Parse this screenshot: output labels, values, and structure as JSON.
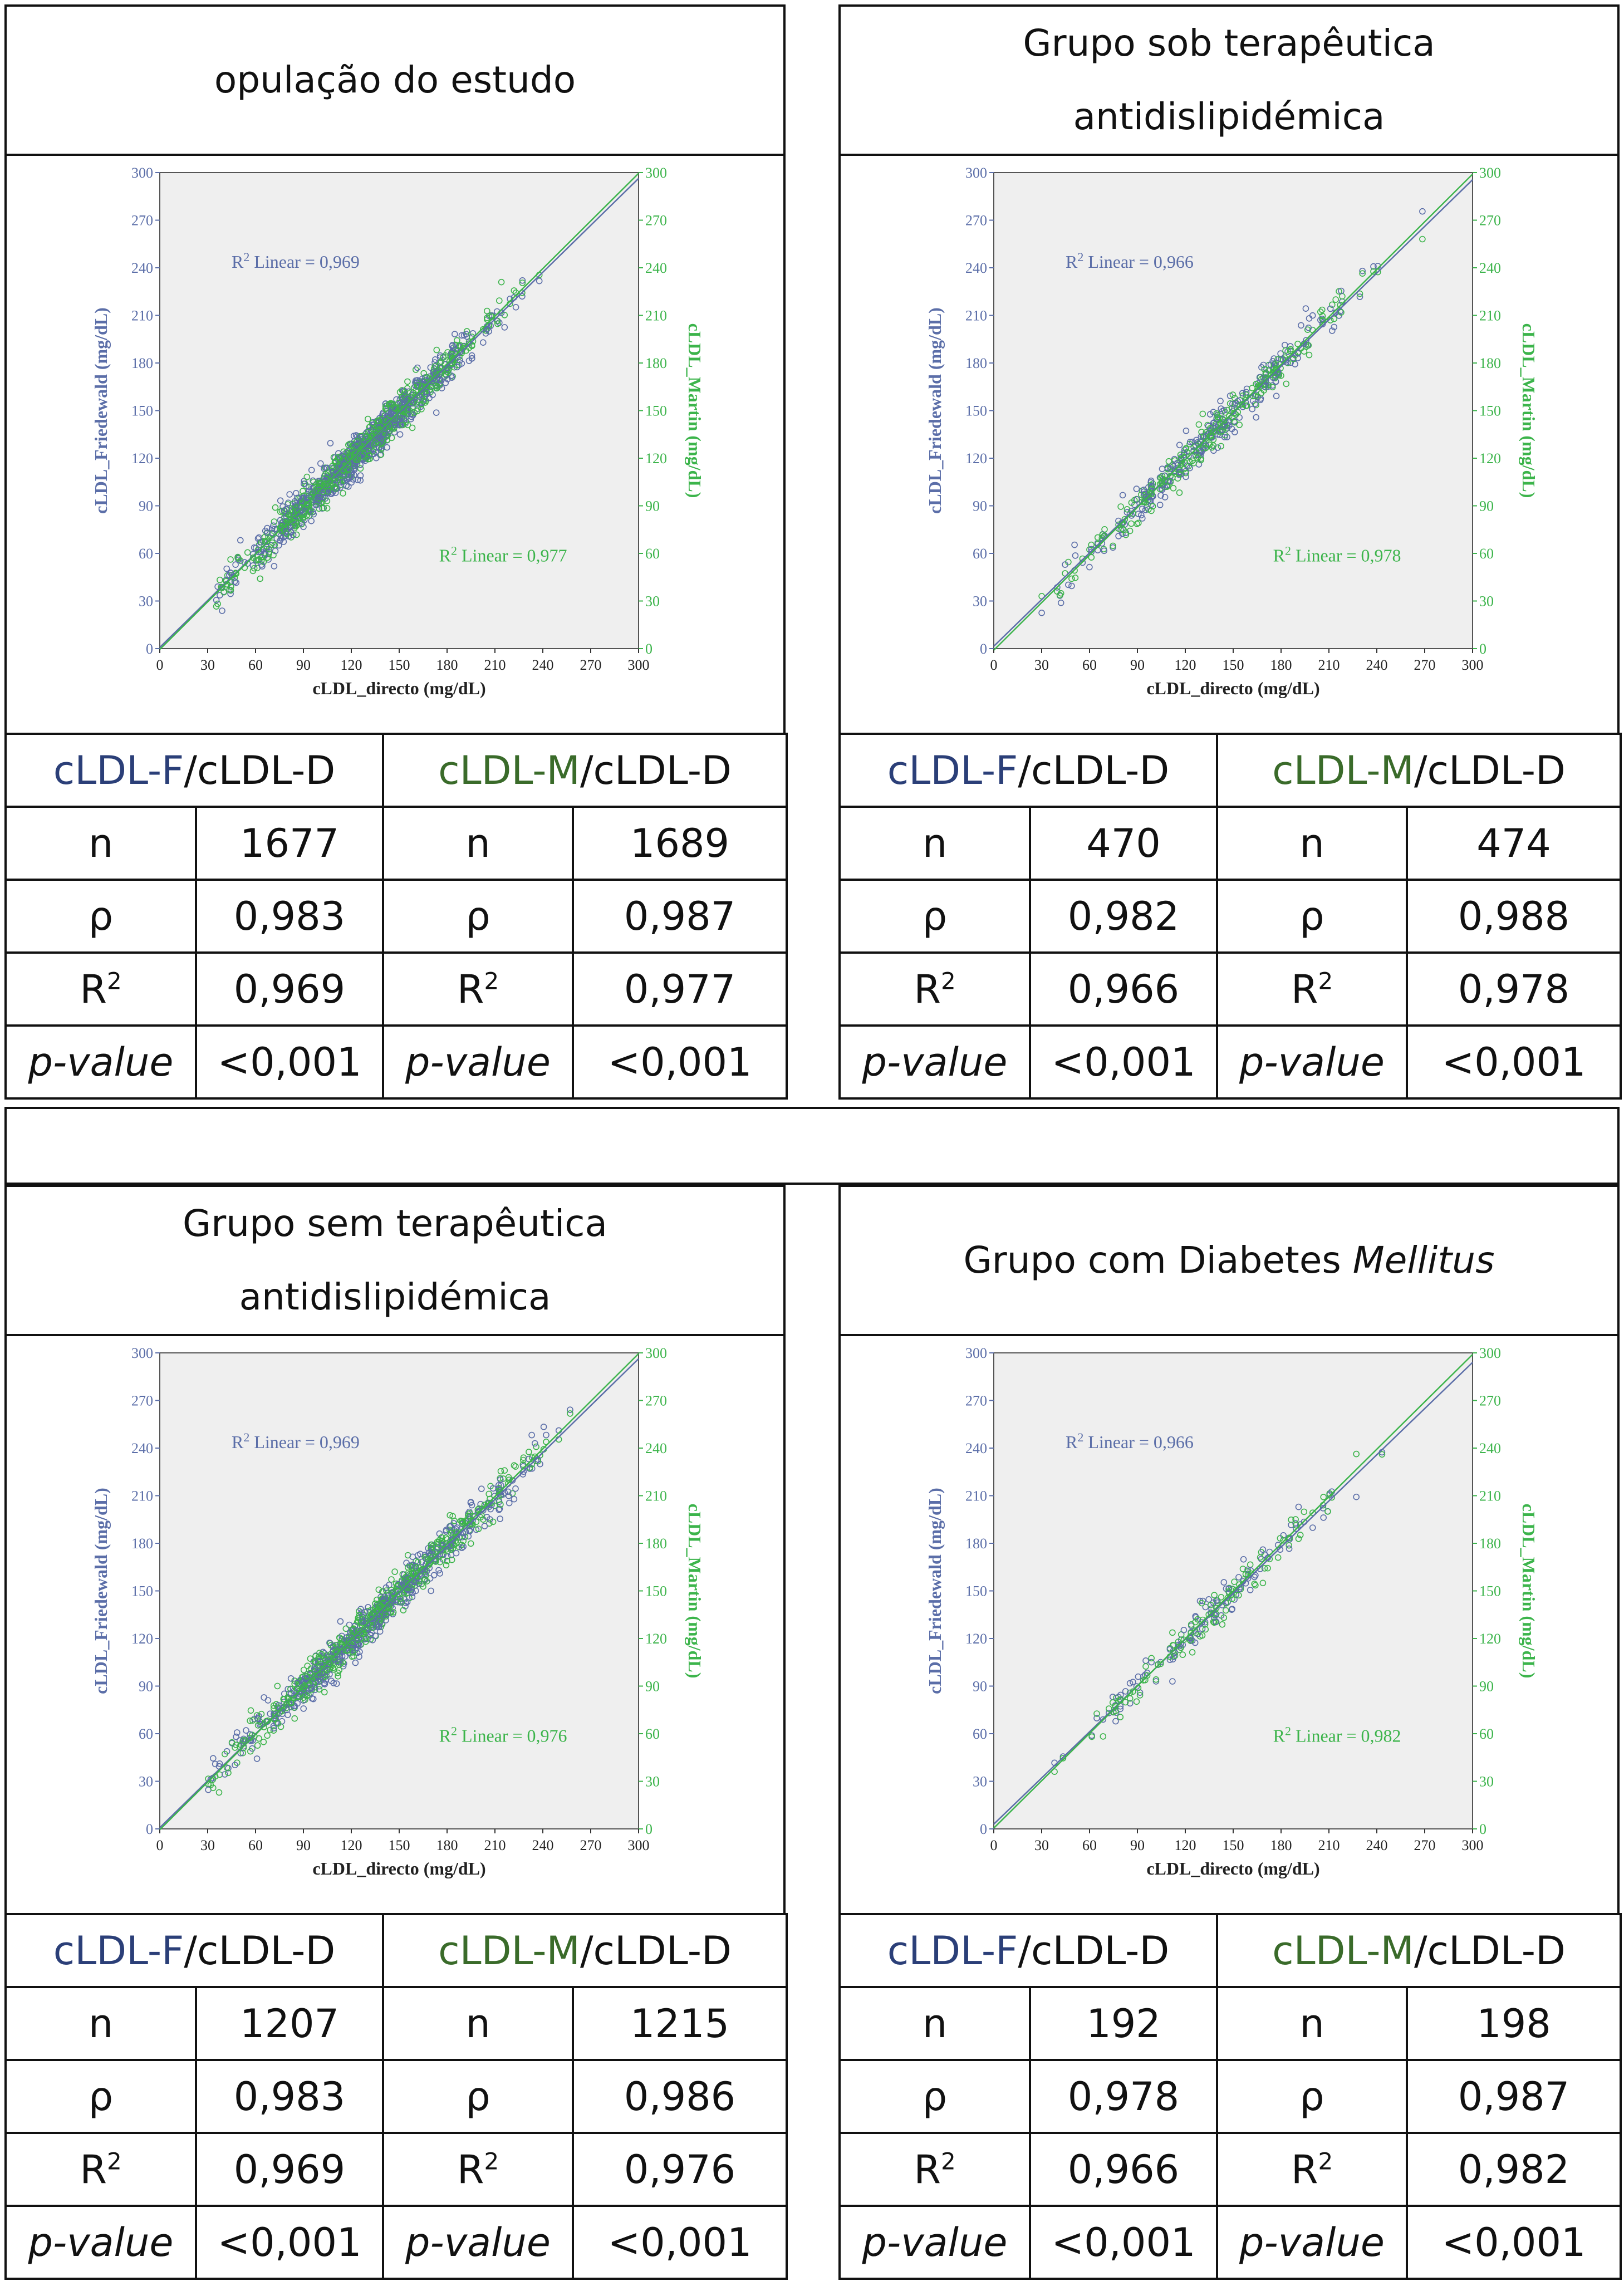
{
  "labels": {
    "f_prefix": "cLDL-F",
    "m_prefix": "cLDL-M",
    "d_suffix": "/cLDL-D",
    "n": "n",
    "rho": "ρ",
    "r2_base": "R",
    "r2_sup": "2",
    "pvalue": "p-value",
    "xlabel": "cLDL_directo (mg/dL)",
    "ylabel_left": "cLDL_Friedewald (mg/dL)",
    "ylabel_right": "cLDL_Martin (mg/dL)",
    "r2_linear": "R",
    "r2_linear_sup": "2",
    "r2_linear_suffix": " Linear = "
  },
  "colors": {
    "friedewald": "#5b6ea8",
    "martin": "#3cb44b",
    "plot_bg": "#efefef",
    "header_f": "#2b3f78",
    "header_m": "#3a6b2a"
  },
  "panels": [
    {
      "title_line1": "opulação do estudo",
      "title_line2": "",
      "title_italic": "",
      "stats": {
        "f": {
          "n": "1677",
          "rho": "0,983",
          "r2": "0,969",
          "p": "<0,001"
        },
        "m": {
          "n": "1689",
          "rho": "0,987",
          "r2": "0,977",
          "p": "<0,001"
        }
      },
      "chart_data": {
        "type": "scatter",
        "xlabel": "cLDL_directo (mg/dL)",
        "ylabel_left": "cLDL_Friedewald (mg/dL)",
        "ylabel_right": "cLDL_Martin (mg/dL)",
        "xlim": [
          0,
          300
        ],
        "ylim": [
          0,
          300
        ],
        "ticks": [
          0,
          30,
          60,
          90,
          120,
          150,
          180,
          210,
          240,
          270,
          300
        ],
        "range": [
          35,
          260
        ],
        "series": [
          {
            "name": "cLDL_Friedewald",
            "r2_label": "0,969",
            "fit": {
              "slope": 0.985,
              "intercept": 0.8
            }
          },
          {
            "name": "cLDL_Martin",
            "r2_label": "0,977",
            "fit": {
              "slope": 1.0,
              "intercept": -0.5
            }
          }
        ]
      }
    },
    {
      "title_line1": "Grupo sob terapêutica",
      "title_line2": "antidislipidémica",
      "title_italic": "",
      "stats": {
        "f": {
          "n": "470",
          "rho": "0,982",
          "r2": "0,966",
          "p": "<0,001"
        },
        "m": {
          "n": "474",
          "rho": "0,988",
          "r2": "0,978",
          "p": "<0,001"
        }
      },
      "chart_data": {
        "type": "scatter",
        "xlabel": "cLDL_directo (mg/dL)",
        "ylabel_left": "cLDL_Friedewald (mg/dL)",
        "ylabel_right": "cLDL_Martin (mg/dL)",
        "xlim": [
          0,
          300
        ],
        "ylim": [
          0,
          300
        ],
        "ticks": [
          0,
          30,
          60,
          90,
          120,
          150,
          180,
          210,
          240,
          270,
          300
        ],
        "range": [
          30,
          290
        ],
        "series": [
          {
            "name": "cLDL_Friedewald",
            "r2_label": "0,966",
            "fit": {
              "slope": 0.98,
              "intercept": 1.5
            }
          },
          {
            "name": "cLDL_Martin",
            "r2_label": "0,978",
            "fit": {
              "slope": 1.0,
              "intercept": -1.0
            }
          }
        ]
      }
    },
    {
      "title_line1": "Grupo sem terapêutica",
      "title_line2": "antidislipidémica",
      "title_italic": "",
      "stats": {
        "f": {
          "n": "1207",
          "rho": "0,983",
          "r2": "0,969",
          "p": "<0,001"
        },
        "m": {
          "n": "1215",
          "rho": "0,986",
          "r2": "0,976",
          "p": "<0,001"
        }
      },
      "chart_data": {
        "type": "scatter",
        "xlabel": "cLDL_directo (mg/dL)",
        "ylabel_left": "cLDL_Friedewald (mg/dL)",
        "ylabel_right": "cLDL_Martin (mg/dL)",
        "xlim": [
          0,
          300
        ],
        "ylim": [
          0,
          300
        ],
        "ticks": [
          0,
          30,
          60,
          90,
          120,
          150,
          180,
          210,
          240,
          270,
          300
        ],
        "range": [
          30,
          290
        ],
        "series": [
          {
            "name": "cLDL_Friedewald",
            "r2_label": "0,969",
            "fit": {
              "slope": 0.985,
              "intercept": 0.8
            }
          },
          {
            "name": "cLDL_Martin",
            "r2_label": "0,976",
            "fit": {
              "slope": 1.0,
              "intercept": -0.5
            }
          }
        ]
      }
    },
    {
      "title_line1": "Grupo com Diabetes ",
      "title_line2": "",
      "title_italic": "Mellitus",
      "stats": {
        "f": {
          "n": "192",
          "rho": "0,978",
          "r2": "0,966",
          "p": "<0,001"
        },
        "m": {
          "n": "198",
          "rho": "0,987",
          "r2": "0,982",
          "p": "<0,001"
        }
      },
      "chart_data": {
        "type": "scatter",
        "xlabel": "cLDL_directo (mg/dL)",
        "ylabel_left": "cLDL_Friedewald (mg/dL)",
        "ylabel_right": "cLDL_Martin (mg/dL)",
        "xlim": [
          0,
          300
        ],
        "ylim": [
          0,
          300
        ],
        "ticks": [
          0,
          30,
          60,
          90,
          120,
          150,
          180,
          210,
          240,
          270,
          300
        ],
        "range": [
          30,
          290
        ],
        "series": [
          {
            "name": "cLDL_Friedewald",
            "r2_label": "0,966",
            "fit": {
              "slope": 0.97,
              "intercept": 3.0
            }
          },
          {
            "name": "cLDL_Martin",
            "r2_label": "0,982",
            "fit": {
              "slope": 0.995,
              "intercept": 0.5
            }
          }
        ]
      }
    }
  ]
}
